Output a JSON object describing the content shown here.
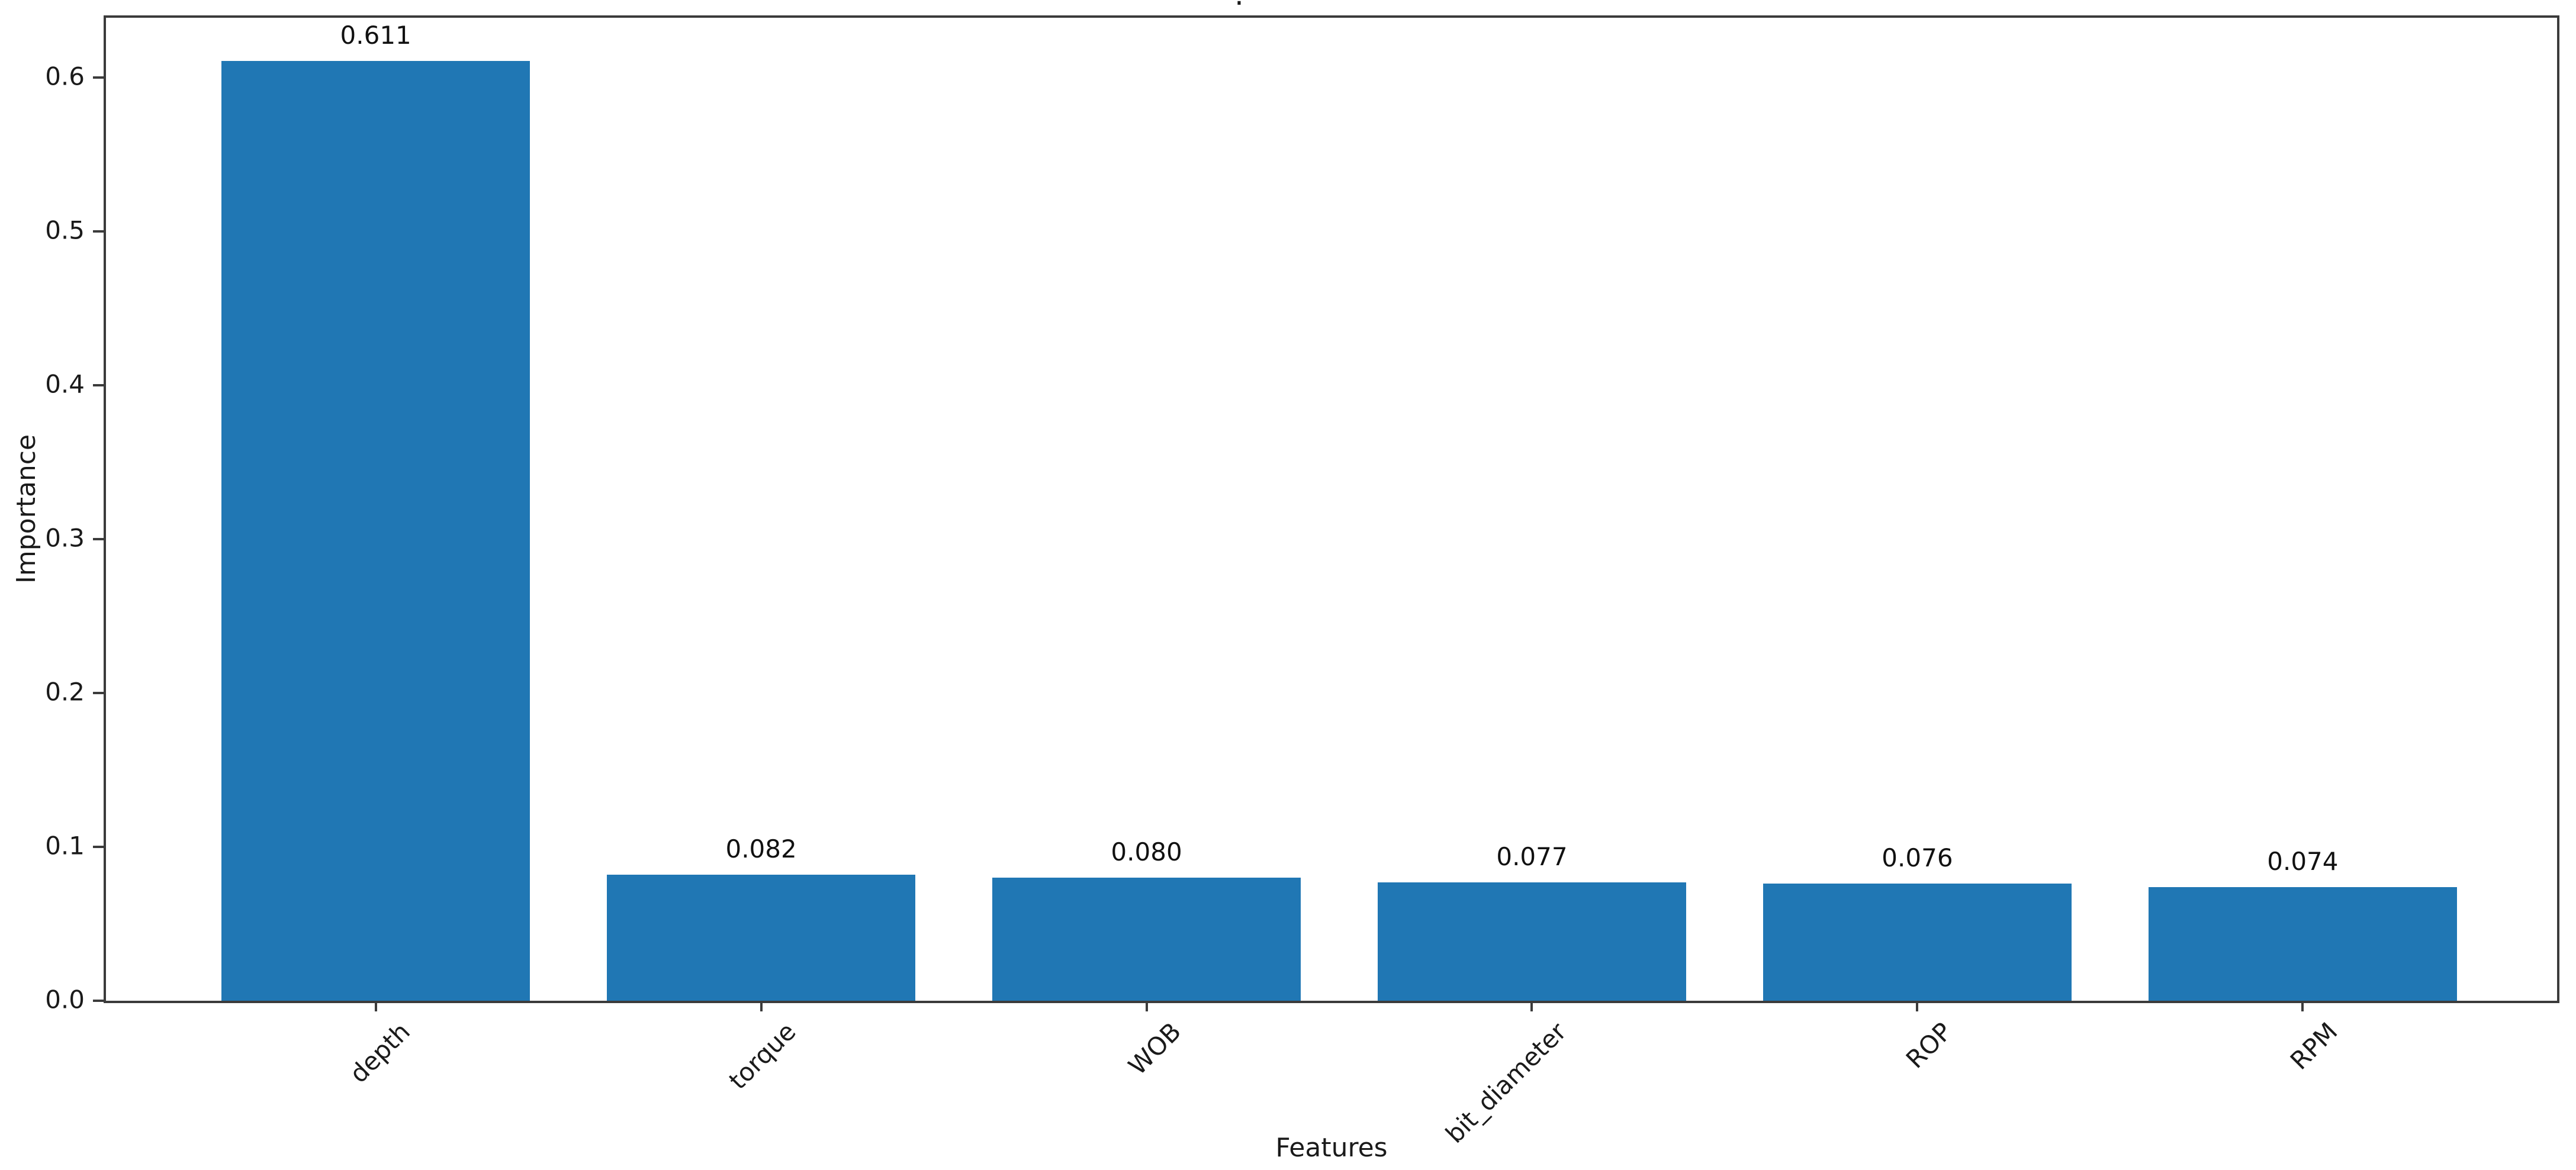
{
  "chart_data": {
    "type": "bar",
    "title": ".",
    "xlabel": "Features",
    "ylabel": "Importance",
    "categories": [
      "depth",
      "torque",
      "WOB",
      "bit_diameter",
      "ROP",
      "RPM"
    ],
    "values": [
      0.611,
      0.082,
      0.08,
      0.077,
      0.076,
      0.074
    ],
    "value_labels": [
      "0.611",
      "0.082",
      "0.080",
      "0.077",
      "0.076",
      "0.074"
    ],
    "yticks": [
      0.0,
      0.1,
      0.2,
      0.3,
      0.4,
      0.5,
      0.6
    ],
    "ytick_labels": [
      "0.0",
      "0.1",
      "0.2",
      "0.3",
      "0.4",
      "0.5",
      "0.6"
    ],
    "ylim": [
      0,
      0.639
    ],
    "xlim": [
      -0.7,
      5.66
    ],
    "bar_width": 0.8,
    "bar_color": "#2077b4",
    "spine_color": "#3b3b3b",
    "xtick_rotation": 45,
    "grid": false,
    "legend": null,
    "background": "#ffffff"
  }
}
